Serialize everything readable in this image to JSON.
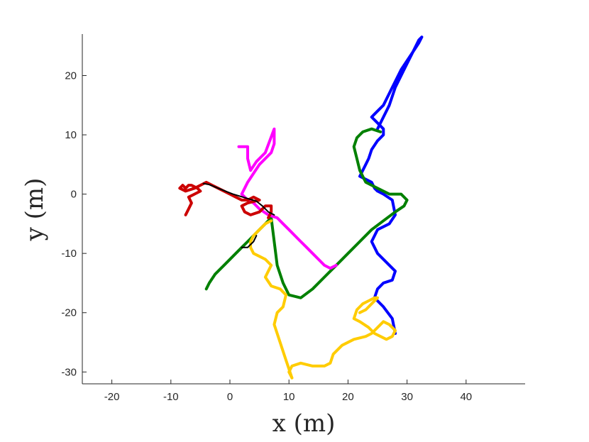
{
  "chart_data": {
    "type": "line",
    "title": "",
    "xlabel": "x (m)",
    "ylabel": "y (m)",
    "xlim": [
      -25,
      50
    ],
    "ylim": [
      -32,
      27
    ],
    "xticks": [
      -20,
      -10,
      0,
      10,
      20,
      30,
      40
    ],
    "yticks": [
      -30,
      -20,
      -10,
      0,
      10,
      20
    ],
    "xtick_labels": [
      "-20",
      "-10",
      "0",
      "10",
      "20",
      "30",
      "40"
    ],
    "ytick_labels": [
      "-30",
      "-20",
      "-10",
      "0",
      "10",
      "20"
    ],
    "grid": false,
    "legend": "none",
    "series": [
      {
        "color": "#0000ff",
        "x": [
          28,
          27.5,
          26,
          24.5,
          25,
          26,
          27.5,
          28,
          26.5,
          25,
          24,
          25,
          27,
          28,
          27.5,
          26,
          25,
          24.5,
          24,
          23,
          22,
          22.5,
          23,
          23.5,
          24,
          25,
          26,
          26,
          25,
          24,
          24.5,
          25,
          26,
          27,
          28,
          29,
          30,
          31,
          32,
          32.5,
          32,
          31,
          29.5,
          28,
          27,
          26,
          25
        ],
        "y": [
          -23.5,
          -21,
          -19,
          -17.5,
          -16,
          -15,
          -14.5,
          -13,
          -11.5,
          -10,
          -8,
          -6,
          -5,
          -3.5,
          -1,
          0,
          0.5,
          1,
          2,
          2.5,
          3,
          4,
          5,
          6,
          7.5,
          9,
          10,
          11,
          12,
          13,
          13.5,
          14,
          15,
          17,
          19,
          21,
          22.5,
          24,
          25.5,
          26.5,
          26,
          24,
          21,
          18,
          15,
          13,
          11
        ]
      },
      {
        "color": "#008000",
        "x": [
          -4,
          -3.5,
          -2.5,
          -1,
          0.5,
          2,
          3,
          4,
          5,
          6,
          7,
          8,
          9,
          10,
          12,
          14,
          16,
          18,
          20,
          22,
          24,
          26,
          28,
          29.5,
          30,
          29,
          27,
          25,
          23,
          22,
          21.5,
          21,
          21.5,
          22.5,
          24,
          25.5
        ],
        "y": [
          -16,
          -15,
          -13.5,
          -12,
          -10.5,
          -9,
          -8,
          -7,
          -6,
          -5,
          -4,
          -12,
          -15,
          -17,
          -17.5,
          -16,
          -14,
          -12,
          -10,
          -8,
          -6,
          -4.5,
          -3,
          -2,
          -1,
          0,
          0,
          1,
          2,
          4,
          6,
          8,
          9.5,
          10.5,
          11,
          10.5
        ]
      },
      {
        "color": "#ff00ff",
        "x": [
          18,
          17,
          16,
          15,
          14,
          13,
          12,
          11,
          10,
          9,
          8,
          6.5,
          5,
          4,
          3,
          2,
          2.5,
          3,
          4,
          5,
          6,
          7,
          7.5,
          7.5,
          6,
          4.5,
          3.5,
          3,
          3,
          2,
          1.5
        ],
        "y": [
          -12,
          -12.5,
          -12,
          -11,
          -10,
          -9,
          -8,
          -7,
          -6,
          -5,
          -4,
          -3.5,
          -2.5,
          -1.5,
          -1,
          0,
          1,
          2,
          3.5,
          5,
          6,
          7,
          8.5,
          11,
          7,
          5.5,
          4,
          6,
          8,
          8,
          8
        ]
      },
      {
        "color": "#ffcc00",
        "x": [
          10.5,
          10,
          10.5,
          12,
          14,
          16,
          17,
          17.5,
          19,
          21,
          23,
          24,
          25,
          26,
          27,
          28,
          27.5,
          26.5,
          25.5,
          24.5,
          23.5,
          22,
          21,
          21.5,
          22.5,
          23.5,
          24.5,
          25,
          24,
          23,
          22
        ],
        "y": [
          -31,
          -30,
          -29,
          -28.5,
          -29,
          -29,
          -28.5,
          -27,
          -25.5,
          -24.5,
          -24,
          -23.5,
          -22.5,
          -21.5,
          -22,
          -23,
          -24,
          -24.5,
          -24,
          -23.5,
          -22.5,
          -21.5,
          -21,
          -19.5,
          -18.5,
          -18,
          -17.5,
          -17.5,
          -18.5,
          -19.5,
          -20
        ]
      },
      {
        "color": "#ffcc00",
        "x": [
          10.5,
          9.5,
          8.5,
          7.5,
          8,
          9,
          9.5,
          8.5,
          7,
          6,
          6.5,
          7,
          6,
          5,
          4,
          3.5,
          3.5,
          4,
          5,
          6,
          7
        ],
        "y": [
          -31,
          -28,
          -25,
          -22,
          -20,
          -19,
          -17,
          -16,
          -15.5,
          -14,
          -13,
          -12,
          -11,
          -10.5,
          -10,
          -9,
          -8,
          -7,
          -6,
          -5,
          -4.5
        ]
      },
      {
        "color": "#cc0000",
        "x": [
          -7.5,
          -7,
          -6.5,
          -7,
          -6,
          -5,
          -5.5,
          -6.5,
          -7,
          -7.5,
          -8,
          -8.5,
          -7.5,
          -6,
          -5,
          -4,
          -3,
          -2,
          -1,
          0,
          1,
          2,
          3,
          4,
          5,
          3,
          2,
          2.5,
          3.5,
          5,
          6,
          7,
          7,
          6.5
        ],
        "y": [
          -3.5,
          -2.5,
          -1.5,
          -0.5,
          0,
          0.5,
          1,
          1.5,
          1.5,
          1,
          1.5,
          1,
          0.5,
          1,
          1.5,
          2,
          1.5,
          1,
          0.5,
          0,
          -0.5,
          -1,
          -1,
          -0.5,
          -1,
          -1.5,
          -2,
          -3,
          -3.5,
          -3,
          -2,
          -2,
          -3,
          -4
        ]
      },
      {
        "color": "#000000",
        "x": [
          -4.5,
          -3.5,
          -2.5,
          -1.5,
          -0.5,
          0.5,
          1.5,
          2.5,
          3.5,
          4.5,
          5.5,
          6.5,
          7.5
        ],
        "y": [
          1.8,
          1.6,
          1.2,
          0.8,
          0.4,
          0,
          -0.3,
          -0.6,
          -0.9,
          -1.2,
          -2,
          -3,
          -3.5
        ]
      },
      {
        "color": "#000000",
        "x": [
          2,
          3,
          3.5,
          4,
          4.5
        ],
        "y": [
          -9,
          -9,
          -8.5,
          -8,
          -7
        ]
      }
    ]
  }
}
